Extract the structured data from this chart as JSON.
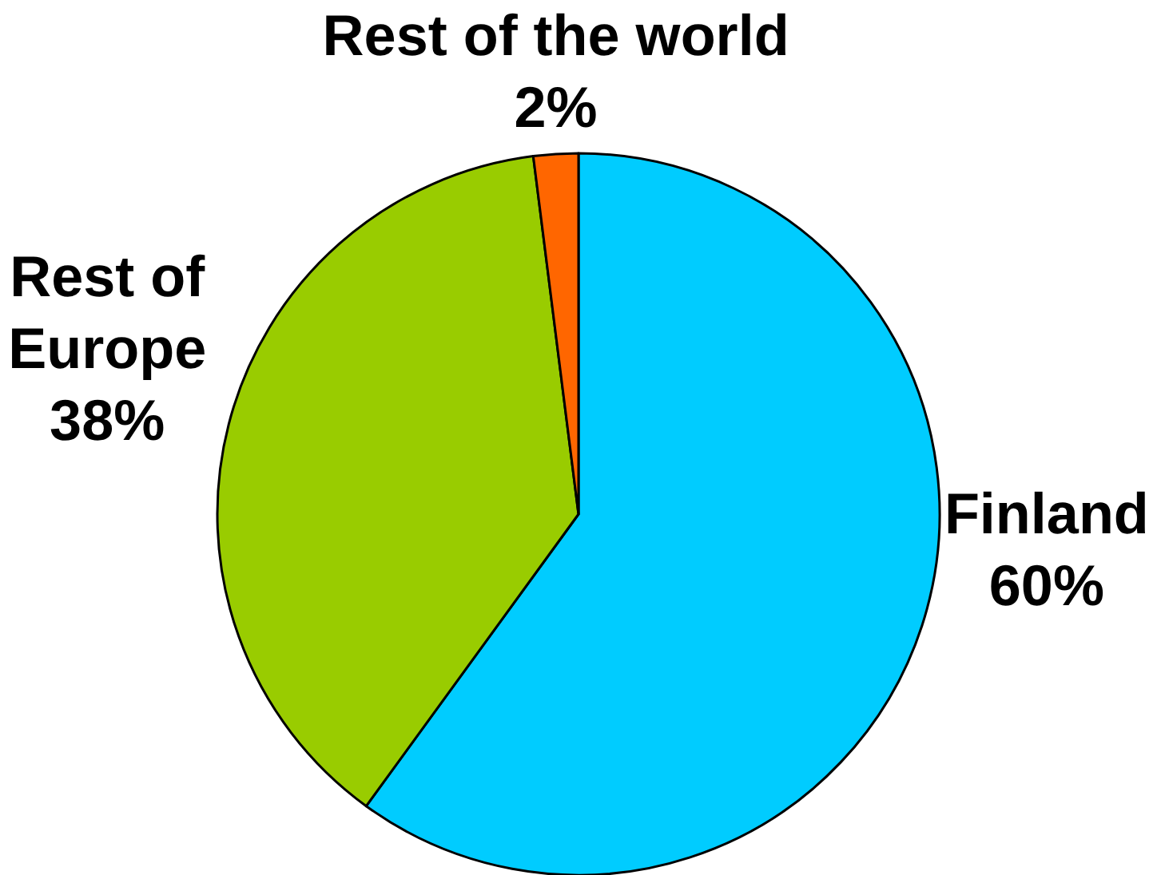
{
  "chart_data": {
    "type": "pie",
    "categories": [
      "Finland",
      "Rest of Europe",
      "Rest of the world"
    ],
    "values": [
      60,
      38,
      2
    ],
    "colors": [
      "#00ccff",
      "#99cc00",
      "#ff6600"
    ],
    "value_labels": [
      "60%",
      "38%",
      "2%"
    ]
  }
}
